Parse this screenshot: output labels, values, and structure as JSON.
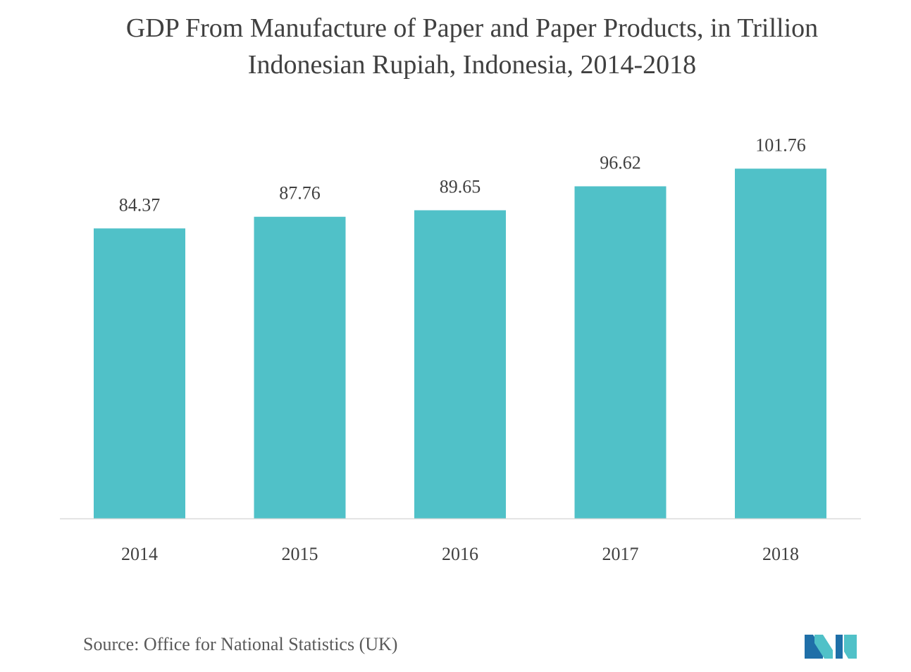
{
  "chart_data": {
    "type": "bar",
    "title": "GDP From Manufacture of Paper and Paper Products, in Trillion Indonesian Rupiah, Indonesia, 2014-2018",
    "title_lines": [
      "GDP From Manufacture of Paper and Paper Products, in Trillion",
      "Indonesian Rupiah, Indonesia, 2014-2018"
    ],
    "categories": [
      "2014",
      "2015",
      "2016",
      "2017",
      "2018"
    ],
    "values": [
      84.37,
      87.76,
      89.65,
      96.62,
      101.76
    ],
    "value_labels": [
      "84.37",
      "87.76",
      "89.65",
      "96.62",
      "101.76"
    ],
    "xlabel": "",
    "ylabel": "",
    "ylim": [
      0,
      110
    ],
    "grid": false,
    "legend": "none",
    "bar_color": "#50C1C8",
    "axis_color": "#D9D9D9"
  },
  "source": "Source: Office for National Statistics (UK)",
  "logo": {
    "name": "mordor-intelligence-logo",
    "colors": [
      "#1F6FA8",
      "#50C1C8"
    ]
  }
}
